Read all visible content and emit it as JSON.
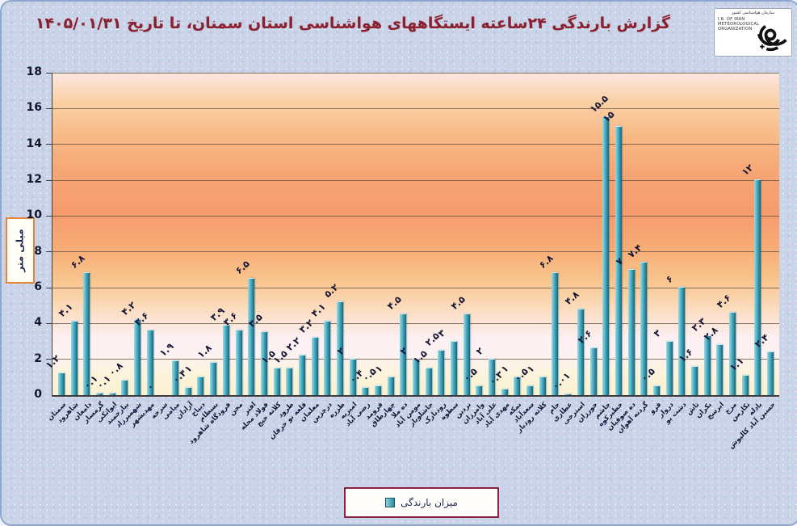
{
  "title": "گزارش بارندگی ۲۴ساعته ایستگاههای هواشناسی استان سمنان، تا تاریخ ۱۴۰۵/۰۱/۳۱",
  "logo": {
    "fa_label": "سازمان هواشناسی کشور",
    "en_lines": [
      "I.R. OF IRAN",
      "METEOROLOGICAL",
      "ORGANIZATION"
    ]
  },
  "y_axis": {
    "unit_label": "میلی متر",
    "ticks": [
      18,
      16,
      14,
      12,
      10,
      8,
      6,
      4,
      2,
      0
    ]
  },
  "legend": {
    "label": "میزان بارندگی",
    "marker_color": "#2f8ea4"
  },
  "colors": {
    "title": "#8b2130",
    "bar_main": "#2f8ea4",
    "bar_light": "#9bdae2",
    "bar_dark": "#13657c",
    "legend_border": "#8b2040",
    "unit_box_border": "#e0873c",
    "background": "#c9d4e9"
  },
  "chart_data": {
    "type": "bar",
    "title": "گزارش بارندگی ۲۴ساعته ایستگاههای هواشناسی استان سمنان، تا تاریخ ۱۴۰۵/۰۱/۳۱",
    "xlabel": "",
    "ylabel": "میلی متر",
    "ylim": [
      0,
      18
    ],
    "grid": true,
    "legend_position": "bottom",
    "legend_entries": [
      "میزان بارندگی"
    ],
    "categories": [
      "سمنان",
      "شاهرود",
      "دامغان",
      "گرمسار",
      "ایوانکی",
      "بیارجمند",
      "شهمیرزاد",
      "مهدیشهر",
      "سرخه",
      "میامی",
      "آرادان",
      "دیباج",
      "بسطام",
      "فرودگاه شاهرود",
      "مجن",
      "افتر",
      "فولاد محله",
      "کلاته خیج",
      "طرود",
      "قلعه نو خرقان",
      "معلمان",
      "درجزین",
      "طزره",
      "امیریه",
      "رضی آباد",
      "فرومد",
      "چهارطاق",
      "ده ملا",
      "مومن آباد",
      "جاشلوبار",
      "رودبارک",
      "سطوه",
      "نردین",
      "وامرزان",
      "علی آباد",
      "مهدی آباد",
      "نمکه",
      "سعدآباد",
      "کلاته رودبار",
      "جام",
      "عطاری",
      "استرخی",
      "خورزان",
      "چاشم",
      "خطیرکوه",
      "ده صوفیان",
      "گردنه آهوان",
      "فرو",
      "دروار",
      "دشت بو",
      "تاش",
      "بکران",
      "ابرسج",
      "مزج",
      "نکارمن",
      "بادله",
      "حسین آباد کالپوش"
    ],
    "values": [
      1.2,
      4.1,
      6.8,
      0.1,
      0.1,
      0.8,
      4.2,
      3.6,
      0,
      1.9,
      0.4,
      1,
      1.8,
      3.9,
      3.6,
      6.5,
      3.5,
      1.5,
      1.5,
      2.2,
      3.2,
      4.1,
      5.2,
      2,
      0.4,
      0.5,
      1,
      4.5,
      2,
      1.5,
      2.5,
      3,
      4.5,
      0.5,
      2,
      0.3,
      1,
      0.5,
      1,
      6.8,
      0.01,
      4.8,
      2.6,
      15.5,
      15,
      7,
      7.4,
      0.5,
      3,
      6,
      1.6,
      3.3,
      2.8,
      4.6,
      1.1,
      12,
      2.4
    ],
    "value_labels": [
      "۱.۲",
      "۴.۱",
      "۶.۸",
      "۰.۱",
      "۰.۱",
      "۰.۸",
      "۴.۲",
      "۳.۶",
      "۰",
      "۱.۹",
      "۰.۴",
      "۱",
      "۱.۸",
      "۳.۹",
      "۳.۶",
      "۶.۵",
      "۳.۵",
      "۱.۵",
      "۱.۵",
      "۲.۲",
      "۳.۲",
      "۴.۱",
      "۵.۲",
      "۲",
      "۰.۴",
      "۰.۵",
      "۱",
      "۴.۵",
      "۲",
      "۱.۵",
      "۲.۵",
      "۳",
      "۴.۵",
      "۰.۵",
      "۲",
      "۰.۳",
      "۱",
      "۰.۵",
      "۱",
      "۶.۸",
      "۰.۰۱",
      "۴.۸",
      "۲.۶",
      "۱۵.۵",
      "۱۵",
      "۷",
      "۷.۴",
      "۰.۵",
      "۳",
      "۶",
      "۱.۶",
      "۳.۳",
      "۲.۸",
      "۴.۶",
      "۱.۱",
      "۱۲",
      "۲.۴"
    ]
  }
}
